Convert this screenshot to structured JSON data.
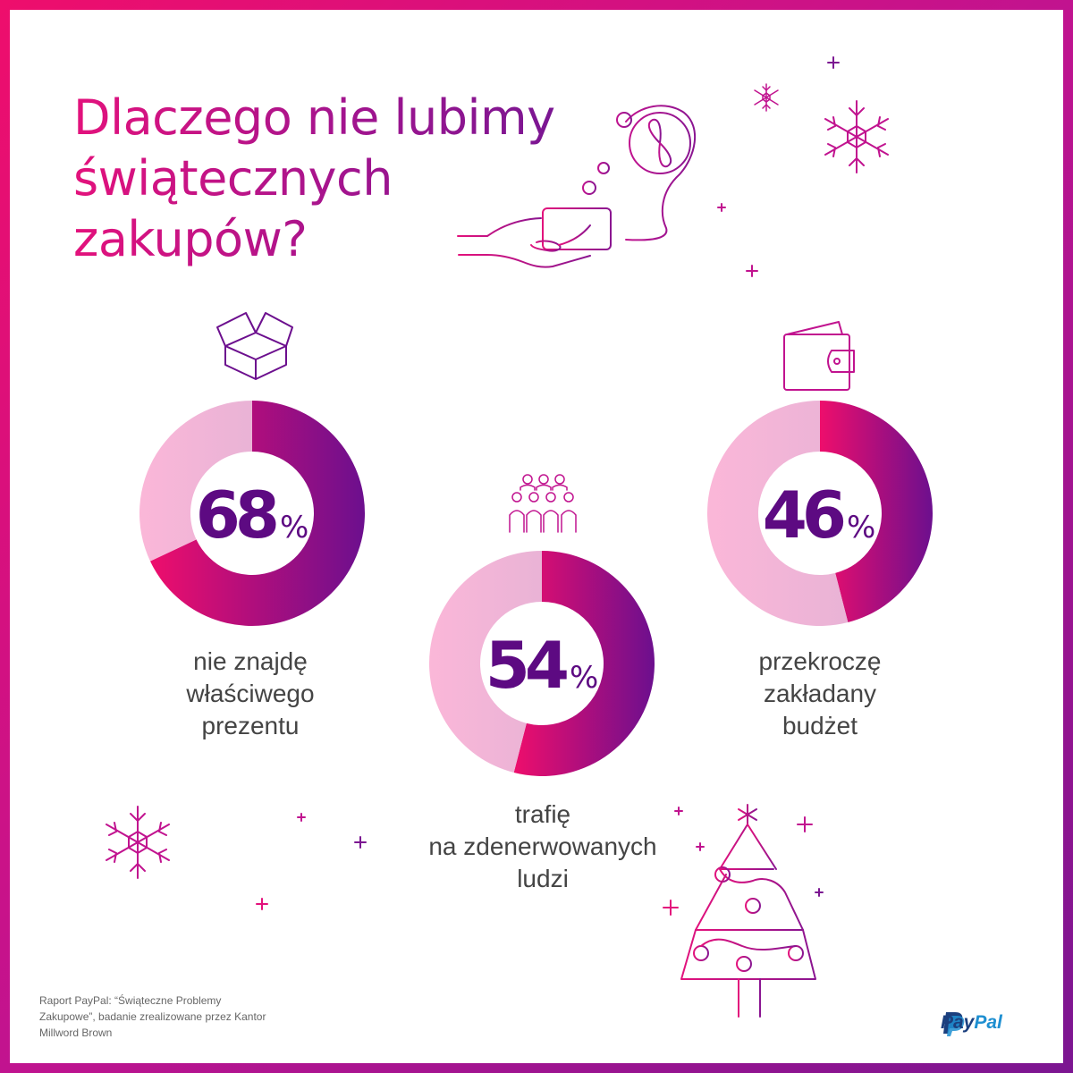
{
  "title": {
    "line1": "Dlaczego nie lubimy",
    "line2": "świątecznych",
    "line3": "zakupów?"
  },
  "chart_data": [
    {
      "type": "pie",
      "values": [
        68,
        32
      ],
      "label": "68",
      "unit": "%",
      "caption": [
        "nie znajdę",
        "właściwego",
        "prezentu"
      ],
      "icon": "open-box-icon"
    },
    {
      "type": "pie",
      "values": [
        54,
        46
      ],
      "label": "54",
      "unit": "%",
      "caption": [
        "trafię",
        "na zdenerwowanych",
        "ludzi"
      ],
      "icon": "crowd-icon"
    },
    {
      "type": "pie",
      "values": [
        46,
        54
      ],
      "label": "46",
      "unit": "%",
      "caption": [
        "przekroczę",
        "zakładany",
        "budżet"
      ],
      "icon": "wallet-icon"
    }
  ],
  "source": {
    "line1": "Raport PayPal: “Świąteczne Problemy",
    "line2": "Zakupowe”, badanie zrealizowane przez Kantor",
    "line3": "Millword Brown"
  },
  "logo": {
    "pay": "Pay",
    "pal": "Pal"
  },
  "colors": {
    "pink": "#ee0e6c",
    "purple": "#7b1591",
    "light_pink": "#f5b6d6",
    "text_dark_purple": "#5d0a82"
  },
  "icons": [
    "hand-card-icon",
    "gift-ornament-icon",
    "snowflake-icon",
    "plus-sparkle-icon",
    "christmas-tree-icon",
    "paypal-logo-icon"
  ]
}
